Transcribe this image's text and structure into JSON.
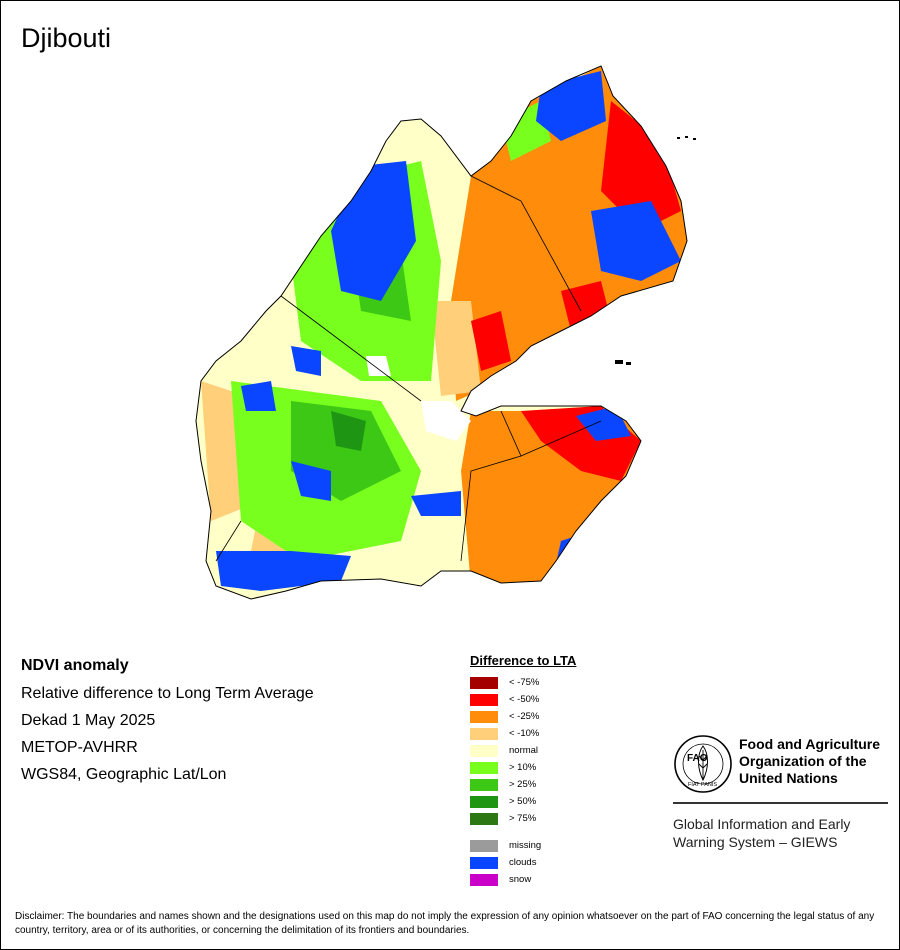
{
  "map": {
    "title": "Djibouti",
    "info_lines": [
      "NDVI anomaly",
      "Relative difference to Long Term Average",
      "Dekad 1 May 2025",
      "METOP-AVHRR",
      "WGS84, Geographic Lat/Lon"
    ]
  },
  "legend": {
    "title": "Difference to LTA",
    "items": [
      {
        "label": "< -75%",
        "color": "#a50000"
      },
      {
        "label": "< -50%",
        "color": "#ff0000"
      },
      {
        "label": "< -25%",
        "color": "#ff8c0a"
      },
      {
        "label": "< -10%",
        "color": "#ffcf7a"
      },
      {
        "label": "normal",
        "color": "#ffffc8"
      },
      {
        "label": "> 10%",
        "color": "#78ff1e"
      },
      {
        "label": "> 25%",
        "color": "#3cc814"
      },
      {
        "label": "> 50%",
        "color": "#1e9614"
      },
      {
        "label": "> 75%",
        "color": "#2d7814"
      }
    ],
    "extra": [
      {
        "label": "missing",
        "color": "#9b9b9b"
      },
      {
        "label": "clouds",
        "color": "#0a46ff"
      },
      {
        "label": "snow",
        "color": "#c800c8"
      }
    ]
  },
  "org": {
    "logo_text": "FAO",
    "logo_motto": "FIAT PANIS",
    "name": "Food and Agriculture Organization of the United Nations",
    "system": "Global Information and Early Warning System – GIEWS"
  },
  "disclaimer": "Disclaimer: The boundaries and names shown and the designations used on this map do not imply the expression of any opinion whatsoever on the part of FAO concerning the legal status of any country, territory, area or of its authorities, or concerning the delimitation of its frontiers and boundaries."
}
